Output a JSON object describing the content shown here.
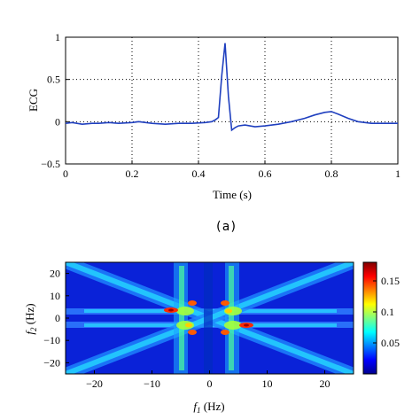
{
  "chart_data": [
    {
      "type": "line",
      "ylabel": "ECG",
      "xlabel": "Time (s)",
      "caption": "(a)",
      "xlim": [
        0,
        1
      ],
      "ylim": [
        -0.5,
        1
      ],
      "xticks": [
        "0",
        "0.2",
        "0.4",
        "0.6",
        "0.8",
        "1"
      ],
      "yticks": [
        "−0.5",
        "0",
        "0.5",
        "1"
      ],
      "grid": "dotted",
      "series": [
        {
          "color": "#1f3fbf",
          "x": [
            0,
            0.02,
            0.05,
            0.08,
            0.1,
            0.13,
            0.16,
            0.2,
            0.22,
            0.26,
            0.3,
            0.34,
            0.38,
            0.42,
            0.44,
            0.45,
            0.46,
            0.47,
            0.48,
            0.49,
            0.5,
            0.51,
            0.52,
            0.54,
            0.57,
            0.6,
            0.64,
            0.68,
            0.72,
            0.75,
            0.78,
            0.8,
            0.82,
            0.85,
            0.88,
            0.92,
            0.96,
            1.0
          ],
          "y": [
            -0.02,
            -0.01,
            -0.03,
            -0.02,
            -0.02,
            -0.01,
            -0.02,
            -0.01,
            0.0,
            -0.02,
            -0.03,
            -0.02,
            -0.02,
            -0.01,
            0.0,
            0.02,
            0.05,
            0.55,
            0.93,
            0.3,
            -0.1,
            -0.07,
            -0.05,
            -0.04,
            -0.06,
            -0.05,
            -0.03,
            0.0,
            0.04,
            0.08,
            0.11,
            0.12,
            0.09,
            0.04,
            0.0,
            -0.02,
            -0.02,
            -0.02
          ]
        }
      ]
    },
    {
      "type": "heatmap",
      "xlabel": "f",
      "xlabel_sub": "1",
      "xlabel_unit": " (Hz)",
      "ylabel": "f",
      "ylabel_sub": "2",
      "ylabel_unit": " (Hz)",
      "xlim": [
        -25,
        25
      ],
      "ylim": [
        -25,
        25
      ],
      "xticks": [
        "−20",
        "−10",
        "0",
        "10",
        "20"
      ],
      "yticks": [
        "20",
        "10",
        "0",
        "−10",
        "−20"
      ],
      "colorbar_ticks": [
        "0.15",
        "0.1",
        "0.05"
      ],
      "colorbar_range": [
        0,
        0.18
      ],
      "colormap": "jet"
    }
  ]
}
